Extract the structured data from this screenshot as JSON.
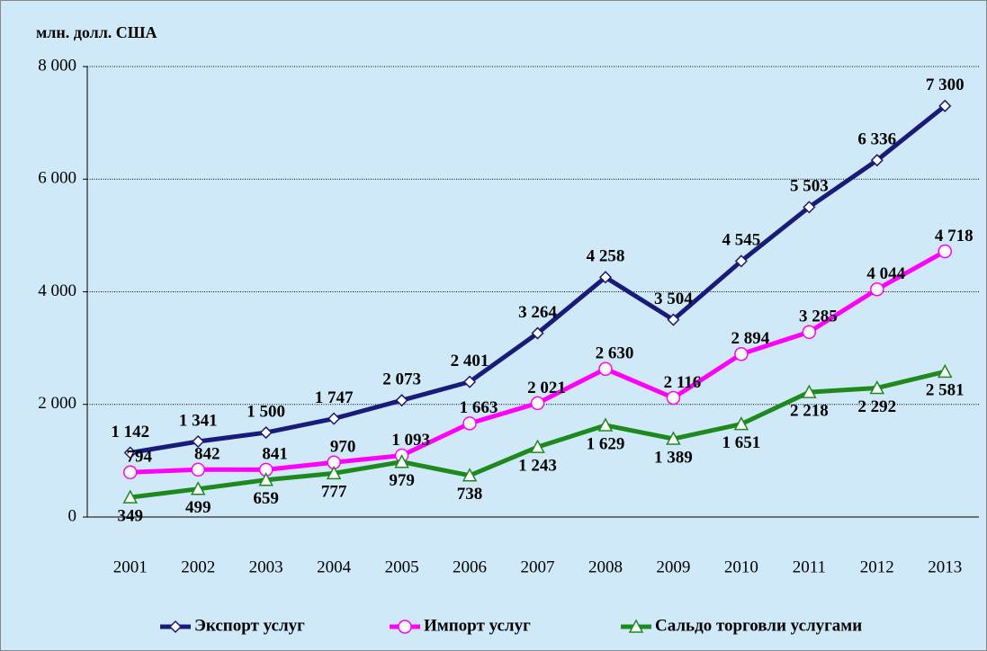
{
  "chart_data": {
    "type": "line",
    "y_label": "млн. долл. США",
    "categories": [
      "2001",
      "2002",
      "2003",
      "2004",
      "2005",
      "2006",
      "2007",
      "2008",
      "2009",
      "2010",
      "2011",
      "2012",
      "2013"
    ],
    "series": [
      {
        "name": "Экспорт услуг",
        "color": "#1a1a7a",
        "marker": "diamond",
        "values": [
          1142,
          1341,
          1500,
          1747,
          2073,
          2401,
          3264,
          4258,
          3504,
          4545,
          5503,
          6336,
          7300
        ],
        "value_labels": [
          "1 142",
          "1 341",
          "1 500",
          "1 747",
          "2 073",
          "2 401",
          "3 264",
          "4 258",
          "3 504",
          "4 545",
          "5 503",
          "6 336",
          "7 300"
        ]
      },
      {
        "name": "Импорт услуг",
        "color": "#ff00ff",
        "marker": "circle",
        "values": [
          794,
          842,
          841,
          970,
          1093,
          1663,
          2021,
          2630,
          2116,
          2894,
          3285,
          4044,
          4718
        ],
        "value_labels": [
          "794",
          "842",
          "841",
          "970",
          "1 093",
          "1 663",
          "2 021",
          "2 630",
          "2 116",
          "2 894",
          "3 285",
          "4 044",
          "4 718"
        ]
      },
      {
        "name": "Сальдо торговли услугами",
        "color": "#1e8a1e",
        "marker": "triangle",
        "values": [
          349,
          499,
          659,
          777,
          979,
          738,
          1243,
          1629,
          1389,
          1651,
          2218,
          2292,
          2581
        ],
        "value_labels": [
          "349",
          "499",
          "659",
          "777",
          "979",
          "738",
          "1 243",
          "1 629",
          "1 389",
          "1 651",
          "2 218",
          "2 292",
          "2 581"
        ]
      }
    ],
    "ylim": [
      0,
      8000
    ],
    "yticks": [
      0,
      {
        "value": 2000,
        "label": "2 000"
      },
      {
        "value": 4000,
        "label": "4 000"
      },
      {
        "value": 6000,
        "label": "6 000"
      },
      {
        "value": 8000,
        "label": "8 000"
      }
    ],
    "grid": true,
    "legend": "bottom"
  }
}
